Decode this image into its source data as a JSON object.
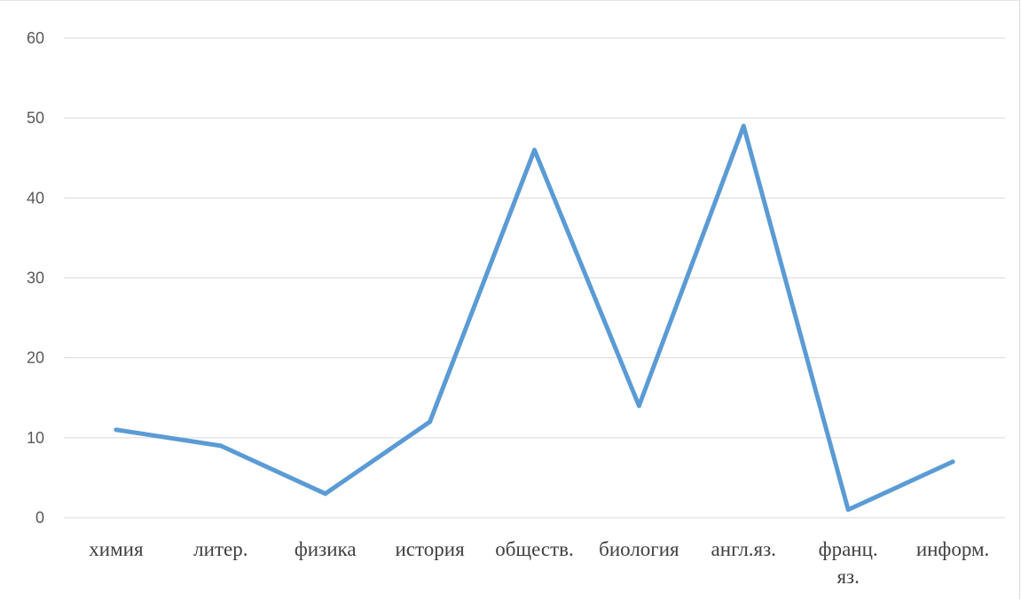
{
  "chart_data": {
    "type": "line",
    "title": "",
    "xlabel": "",
    "ylabel": "",
    "categories": [
      "химия",
      "литер.",
      "физика",
      "история",
      "обществ.",
      "биология",
      "англ.яз.",
      "франц. яз.",
      "информ."
    ],
    "series": [
      {
        "values": [
          11,
          9,
          3,
          12,
          46,
          14,
          49,
          1,
          7
        ],
        "color": "#5b9bd5"
      }
    ],
    "ylim": [
      0,
      60
    ],
    "yticks": [
      "0",
      "10",
      "20",
      "30",
      "40",
      "50",
      "60"
    ],
    "grid": true,
    "legend": "none"
  }
}
